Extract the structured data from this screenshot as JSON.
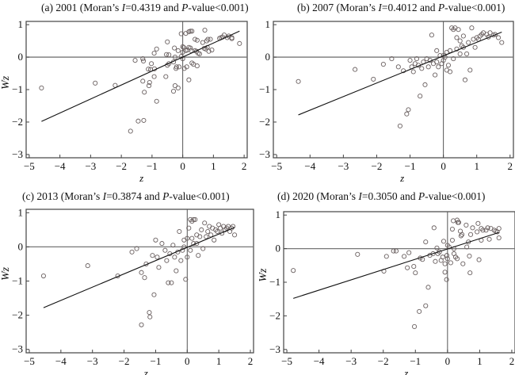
{
  "chart_data": [
    {
      "type": "scatter",
      "title_prefix": "(a) 2001 (Moran’s ",
      "title_I": "I",
      "title_mid": "=0.4319 and ",
      "title_P": "P",
      "title_suffix": "-value<0.001)",
      "xlabel": "z",
      "ylabel": "Wz",
      "xlim": [
        -5.1,
        2.1
      ],
      "ylim": [
        -3.1,
        1.1
      ],
      "xticks": [
        -5,
        -4,
        -3,
        -2,
        -1,
        0,
        1,
        2
      ],
      "yticks": [
        -3,
        -2,
        -1,
        0,
        1
      ],
      "fit_line": {
        "slope": 0.4319,
        "x": [
          -4.6,
          1.85
        ],
        "y": [
          -1.98,
          0.8
        ]
      },
      "points": [
        [
          -4.6,
          -0.95
        ],
        [
          -2.85,
          -0.8
        ],
        [
          -2.2,
          -0.87
        ],
        [
          -1.7,
          -2.28
        ],
        [
          -1.45,
          -1.97
        ],
        [
          -1.27,
          -1.95
        ],
        [
          -1.55,
          -0.1
        ],
        [
          -1.3,
          -0.05
        ],
        [
          -1.28,
          -0.12
        ],
        [
          -1.25,
          -1.08
        ],
        [
          -1.3,
          -0.74
        ],
        [
          -1.1,
          -0.88
        ],
        [
          -1.08,
          -0.78
        ],
        [
          -1.12,
          -0.37
        ],
        [
          -1.05,
          -0.38
        ],
        [
          -1.02,
          -0.2
        ],
        [
          -0.93,
          0.12
        ],
        [
          -0.92,
          -0.36
        ],
        [
          -0.93,
          -0.6
        ],
        [
          -0.85,
          0.25
        ],
        [
          -0.85,
          -1.36
        ],
        [
          -0.55,
          -0.6
        ],
        [
          -0.5,
          0.47
        ],
        [
          -0.53,
          0.08
        ],
        [
          -0.45,
          0.07
        ],
        [
          -0.45,
          -0.2
        ],
        [
          -0.5,
          -0.25
        ],
        [
          -0.3,
          -0.15
        ],
        [
          -0.27,
          0.28
        ],
        [
          -0.25,
          0.0
        ],
        [
          -0.2,
          -0.3
        ],
        [
          -0.22,
          -0.35
        ],
        [
          -0.15,
          0.2
        ],
        [
          -0.12,
          -0.3
        ],
        [
          -0.3,
          -1.05
        ],
        [
          -0.25,
          -0.88
        ],
        [
          -0.15,
          -0.95
        ],
        [
          -0.05,
          0.02
        ],
        [
          0.0,
          0.32
        ],
        [
          0.03,
          0.3
        ],
        [
          0.0,
          0.15
        ],
        [
          0.0,
          -0.05
        ],
        [
          0.05,
          -0.35
        ],
        [
          -0.05,
          0.72
        ],
        [
          0.1,
          0.73
        ],
        [
          0.2,
          0.78
        ],
        [
          0.25,
          0.8
        ],
        [
          0.3,
          0.8
        ],
        [
          0.15,
          0.22
        ],
        [
          0.2,
          0.3
        ],
        [
          0.2,
          -0.7
        ],
        [
          0.25,
          0.28
        ],
        [
          0.28,
          0.2
        ],
        [
          0.3,
          -0.18
        ],
        [
          0.35,
          -0.22
        ],
        [
          0.4,
          0.55
        ],
        [
          0.45,
          0.18
        ],
        [
          0.47,
          0.52
        ],
        [
          0.47,
          -0.27
        ],
        [
          0.5,
          0.12
        ],
        [
          0.55,
          0.1
        ],
        [
          0.65,
          0.45
        ],
        [
          0.7,
          0.27
        ],
        [
          0.72,
          0.83
        ],
        [
          0.75,
          0.25
        ],
        [
          0.78,
          0.5
        ],
        [
          0.8,
          0.3
        ],
        [
          0.82,
          0.55
        ],
        [
          0.85,
          0.18
        ],
        [
          0.9,
          0.55
        ],
        [
          0.95,
          0.22
        ],
        [
          1.2,
          0.58
        ],
        [
          1.25,
          0.6
        ],
        [
          1.3,
          0.62
        ],
        [
          1.35,
          0.68
        ],
        [
          1.45,
          0.6
        ],
        [
          1.5,
          0.65
        ],
        [
          1.6,
          0.57
        ],
        [
          1.6,
          0.6
        ],
        [
          1.85,
          0.42
        ],
        [
          0.1,
          0.2
        ],
        [
          0.4,
          0.2
        ],
        [
          0.13,
          -0.3
        ]
      ]
    },
    {
      "type": "scatter",
      "title_prefix": "(b) 2007 (Moran’s ",
      "title_I": "I",
      "title_mid": "=0.4012 and ",
      "title_P": "P",
      "title_suffix": "-value<0.001)",
      "xlabel": "z",
      "ylabel": "Wz",
      "xlim": [
        -5.1,
        2.1
      ],
      "ylim": [
        -3.1,
        1.1
      ],
      "xticks": [
        -5,
        -4,
        -3,
        -2,
        -1,
        0,
        1,
        2
      ],
      "yticks": [
        -3,
        -2,
        -1,
        0,
        1
      ],
      "fit_line": {
        "slope": 0.4012,
        "x": [
          -4.35,
          1.75
        ],
        "y": [
          -1.78,
          0.77
        ]
      },
      "points": [
        [
          -4.35,
          -0.75
        ],
        [
          -2.65,
          -0.38
        ],
        [
          -2.1,
          -0.68
        ],
        [
          -1.8,
          -0.22
        ],
        [
          -1.55,
          -0.05
        ],
        [
          -1.35,
          -0.3
        ],
        [
          -1.3,
          -2.12
        ],
        [
          -1.2,
          -0.42
        ],
        [
          -1.1,
          -1.75
        ],
        [
          -1.05,
          -1.62
        ],
        [
          -1.0,
          -0.1
        ],
        [
          -0.95,
          -0.3
        ],
        [
          -0.9,
          -0.45
        ],
        [
          -0.85,
          -0.2
        ],
        [
          -0.8,
          -0.05
        ],
        [
          -0.75,
          -0.25
        ],
        [
          -0.7,
          -1.2
        ],
        [
          -0.65,
          -0.35
        ],
        [
          -0.6,
          -0.15
        ],
        [
          -0.55,
          -0.85
        ],
        [
          -0.5,
          -0.05
        ],
        [
          -0.45,
          -0.3
        ],
        [
          -0.4,
          -0.1
        ],
        [
          -0.35,
          0.68
        ],
        [
          -0.3,
          -0.2
        ],
        [
          -0.25,
          -0.55
        ],
        [
          -0.2,
          -0.15
        ],
        [
          -0.15,
          -0.3
        ],
        [
          -0.1,
          0.05
        ],
        [
          -0.05,
          -0.2
        ],
        [
          0.0,
          -0.1
        ],
        [
          0.05,
          0.0
        ],
        [
          0.1,
          0.15
        ],
        [
          0.15,
          -0.25
        ],
        [
          0.2,
          0.2
        ],
        [
          0.25,
          0.9
        ],
        [
          0.3,
          0.85
        ],
        [
          0.35,
          0.9
        ],
        [
          0.4,
          0.6
        ],
        [
          0.45,
          0.85
        ],
        [
          0.5,
          0.1
        ],
        [
          0.55,
          0.35
        ],
        [
          0.6,
          0.3
        ],
        [
          0.65,
          -0.7
        ],
        [
          0.7,
          0.1
        ],
        [
          0.75,
          0.45
        ],
        [
          0.8,
          -0.4
        ],
        [
          0.85,
          0.9
        ],
        [
          0.9,
          0.55
        ],
        [
          0.95,
          0.3
        ],
        [
          1.0,
          0.6
        ],
        [
          1.05,
          0.55
        ],
        [
          1.1,
          0.65
        ],
        [
          1.15,
          0.7
        ],
        [
          1.2,
          0.75
        ],
        [
          1.3,
          0.7
        ],
        [
          1.35,
          0.62
        ],
        [
          1.4,
          0.75
        ],
        [
          1.5,
          0.68
        ],
        [
          1.55,
          0.7
        ],
        [
          1.65,
          0.6
        ],
        [
          1.75,
          0.45
        ],
        [
          0.3,
          -0.05
        ],
        [
          0.4,
          0.25
        ],
        [
          0.6,
          0.65
        ],
        [
          0.2,
          -0.45
        ],
        [
          0.1,
          -0.4
        ],
        [
          -0.2,
          0.2
        ],
        [
          0.0,
          0.05
        ],
        [
          0.5,
          0.5
        ]
      ]
    },
    {
      "type": "scatter",
      "title_prefix": "(c) 2013 (Moran’s ",
      "title_I": "I",
      "title_mid": "=0.3874 and ",
      "title_P": "P",
      "title_suffix": "-value<0.001)",
      "xlabel": "z",
      "ylabel": "Wz",
      "xlim": [
        -5.1,
        2.1
      ],
      "ylim": [
        -3.1,
        1.1
      ],
      "xticks": [
        -5,
        -4,
        -3,
        -2,
        -1,
        0,
        1,
        2
      ],
      "yticks": [
        -3,
        -2,
        -1,
        0,
        1
      ],
      "fit_line": {
        "slope": 0.3874,
        "x": [
          -4.55,
          1.5
        ],
        "y": [
          -1.78,
          0.57
        ]
      },
      "points": [
        [
          -4.55,
          -0.85
        ],
        [
          -3.15,
          -0.55
        ],
        [
          -2.2,
          -0.85
        ],
        [
          -1.75,
          -0.15
        ],
        [
          -1.6,
          -0.05
        ],
        [
          -1.45,
          -2.28
        ],
        [
          -1.45,
          -0.75
        ],
        [
          -1.35,
          -0.9
        ],
        [
          -1.3,
          -0.5
        ],
        [
          -1.2,
          -1.92
        ],
        [
          -1.18,
          -2.05
        ],
        [
          -1.1,
          -0.25
        ],
        [
          -1.05,
          -1.4
        ],
        [
          -1.0,
          0.2
        ],
        [
          -0.95,
          -0.3
        ],
        [
          -0.9,
          -0.6
        ],
        [
          -0.8,
          0.1
        ],
        [
          -0.7,
          -0.1
        ],
        [
          -0.65,
          -0.4
        ],
        [
          -0.6,
          -1.05
        ],
        [
          -0.55,
          -0.2
        ],
        [
          -0.5,
          -1.05
        ],
        [
          -0.45,
          0.05
        ],
        [
          -0.4,
          -0.3
        ],
        [
          -0.35,
          -0.7
        ],
        [
          -0.3,
          -0.15
        ],
        [
          -0.25,
          0.45
        ],
        [
          -0.2,
          -0.4
        ],
        [
          -0.15,
          -0.1
        ],
        [
          -0.1,
          0.2
        ],
        [
          -0.05,
          -0.95
        ],
        [
          0.0,
          0.25
        ],
        [
          0.05,
          0.55
        ],
        [
          0.1,
          0.8
        ],
        [
          0.15,
          0.75
        ],
        [
          0.2,
          0.8
        ],
        [
          0.25,
          0.8
        ],
        [
          0.3,
          0.1
        ],
        [
          0.35,
          -0.25
        ],
        [
          0.4,
          0.3
        ],
        [
          0.45,
          0.5
        ],
        [
          0.5,
          -0.05
        ],
        [
          0.55,
          0.7
        ],
        [
          0.6,
          0.3
        ],
        [
          0.65,
          0.45
        ],
        [
          0.7,
          0.6
        ],
        [
          0.75,
          0.35
        ],
        [
          0.8,
          0.55
        ],
        [
          0.85,
          0.2
        ],
        [
          0.9,
          0.5
        ],
        [
          0.95,
          0.45
        ],
        [
          1.0,
          0.65
        ],
        [
          1.05,
          0.55
        ],
        [
          1.1,
          0.4
        ],
        [
          1.15,
          0.6
        ],
        [
          1.2,
          0.5
        ],
        [
          1.25,
          0.55
        ],
        [
          1.3,
          0.6
        ],
        [
          1.35,
          0.45
        ],
        [
          1.4,
          0.55
        ],
        [
          1.45,
          0.6
        ],
        [
          1.5,
          0.35
        ],
        [
          0.2,
          0.1
        ],
        [
          0.1,
          -0.1
        ],
        [
          -0.1,
          0.0
        ],
        [
          0.3,
          0.35
        ],
        [
          0.0,
          -0.3
        ],
        [
          0.15,
          0.25
        ]
      ]
    },
    {
      "type": "scatter",
      "title_prefix": "(d) 2020 (Moran’s ",
      "title_I": "I",
      "title_mid": "=0.3050 and ",
      "title_P": "P",
      "title_suffix": "-value<0.001)",
      "xlabel": "z",
      "ylabel": "Wz",
      "xlim": [
        -5.1,
        2.1
      ],
      "ylim": [
        -3.1,
        1.1
      ],
      "xticks": [
        -5,
        -4,
        -3,
        -2,
        -1,
        0,
        1,
        2
      ],
      "yticks": [
        -3,
        -2,
        -1,
        0,
        1
      ],
      "fit_line": {
        "slope": 0.305,
        "x": [
          -4.8,
          1.6
        ],
        "y": [
          -1.48,
          0.48
        ]
      },
      "points": [
        [
          -4.8,
          -0.65
        ],
        [
          -2.8,
          -0.17
        ],
        [
          -1.98,
          -0.67
        ],
        [
          -1.9,
          -0.23
        ],
        [
          -1.68,
          -0.07
        ],
        [
          -1.6,
          -0.07
        ],
        [
          -1.35,
          -0.23
        ],
        [
          -1.25,
          -0.57
        ],
        [
          -1.2,
          -0.12
        ],
        [
          -1.05,
          -0.53
        ],
        [
          -1.03,
          -2.32
        ],
        [
          -1.0,
          -0.72
        ],
        [
          -0.88,
          -1.87
        ],
        [
          -0.85,
          -0.28
        ],
        [
          -0.78,
          -0.32
        ],
        [
          -0.68,
          -1.7
        ],
        [
          -0.68,
          0.2
        ],
        [
          -0.6,
          -1.15
        ],
        [
          -0.55,
          -0.2
        ],
        [
          -0.45,
          -0.15
        ],
        [
          -0.42,
          0.62
        ],
        [
          -0.38,
          -0.38
        ],
        [
          -0.33,
          0.02
        ],
        [
          -0.3,
          -0.15
        ],
        [
          -0.25,
          -0.1
        ],
        [
          -0.15,
          -0.25
        ],
        [
          -0.12,
          0.22
        ],
        [
          -0.08,
          -0.45
        ],
        [
          -0.08,
          -0.7
        ],
        [
          -0.03,
          -0.92
        ],
        [
          -0.02,
          -0.2
        ],
        [
          0.0,
          -0.3
        ],
        [
          0.05,
          0.05
        ],
        [
          0.1,
          -0.42
        ],
        [
          0.15,
          0.25
        ],
        [
          0.15,
          0.58
        ],
        [
          0.18,
          0.83
        ],
        [
          0.2,
          0.0
        ],
        [
          0.25,
          -0.25
        ],
        [
          0.3,
          0.85
        ],
        [
          0.32,
          0.78
        ],
        [
          0.35,
          0.78
        ],
        [
          0.4,
          0.52
        ],
        [
          0.42,
          0.38
        ],
        [
          0.45,
          0.42
        ],
        [
          0.48,
          -0.45
        ],
        [
          0.58,
          0.7
        ],
        [
          0.6,
          0.05
        ],
        [
          0.65,
          0.2
        ],
        [
          0.68,
          -0.22
        ],
        [
          0.7,
          -0.72
        ],
        [
          0.72,
          0.42
        ],
        [
          0.78,
          0.62
        ],
        [
          0.92,
          0.5
        ],
        [
          0.95,
          0.75
        ],
        [
          0.98,
          -0.33
        ],
        [
          1.05,
          0.6
        ],
        [
          1.05,
          0.25
        ],
        [
          1.1,
          0.55
        ],
        [
          1.2,
          0.55
        ],
        [
          1.25,
          0.62
        ],
        [
          1.3,
          0.28
        ],
        [
          1.35,
          0.6
        ],
        [
          1.45,
          0.55
        ],
        [
          1.5,
          0.52
        ],
        [
          1.55,
          0.5
        ],
        [
          1.6,
          0.6
        ],
        [
          1.6,
          0.32
        ],
        [
          0.3,
          -0.3
        ],
        [
          0.2,
          -0.15
        ],
        [
          -0.2,
          -0.35
        ],
        [
          0.0,
          0.1
        ]
      ]
    }
  ]
}
